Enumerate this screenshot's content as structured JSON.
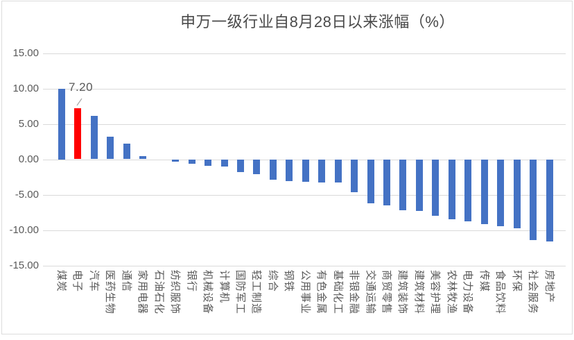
{
  "title": "申万一级行业自8月28日以来涨幅（%）",
  "annotation": {
    "label": "7.20",
    "category": "电子"
  },
  "colors": {
    "bar": "#4472C4",
    "highlight": "#FF0000",
    "grid": "#D9D9D9",
    "axis_text": "#595959",
    "title_text": "#4A4A4A",
    "frame_border": "#DCDCDC",
    "leader_line": "#A6A6A6"
  },
  "chart_data": {
    "type": "bar",
    "title": "申万一级行业自8月28日以来涨幅（%）",
    "xlabel": "",
    "ylabel": "",
    "ylim": [
      -15,
      15
    ],
    "ytick_labels": [
      "15.00",
      "10.00",
      "5.00",
      "0.00",
      "-5.00",
      "-10.00",
      "-15.00"
    ],
    "ytick_values": [
      15,
      10,
      5,
      0,
      -5,
      -10,
      -15
    ],
    "grid": true,
    "legend": false,
    "categories": [
      "煤炭",
      "电子",
      "汽车",
      "医药生物",
      "通信",
      "家用电器",
      "石油石化",
      "纺织服饰",
      "银行",
      "机械设备",
      "计算机",
      "国防军工",
      "轻工制造",
      "综合",
      "钢铁",
      "公用事业",
      "有色金属",
      "基础化工",
      "非银金融",
      "交通运输",
      "商贸零售",
      "建筑装饰",
      "建筑材料",
      "美容护理",
      "农林牧渔",
      "电力设备",
      "传媒",
      "食品饮料",
      "环保",
      "社会服务",
      "房地产"
    ],
    "values": [
      10.0,
      7.2,
      6.1,
      3.2,
      2.2,
      0.4,
      0.0,
      -0.3,
      -0.6,
      -0.9,
      -1.0,
      -1.8,
      -2.1,
      -2.9,
      -3.1,
      -3.2,
      -3.3,
      -3.3,
      -4.7,
      -6.2,
      -6.5,
      -7.2,
      -7.3,
      -8.0,
      -8.5,
      -8.8,
      -9.2,
      -9.5,
      -9.8,
      -11.4,
      -11.6
    ],
    "highlight_category": "电子",
    "data_labels": [
      {
        "category": "电子",
        "text": "7.20"
      }
    ]
  }
}
